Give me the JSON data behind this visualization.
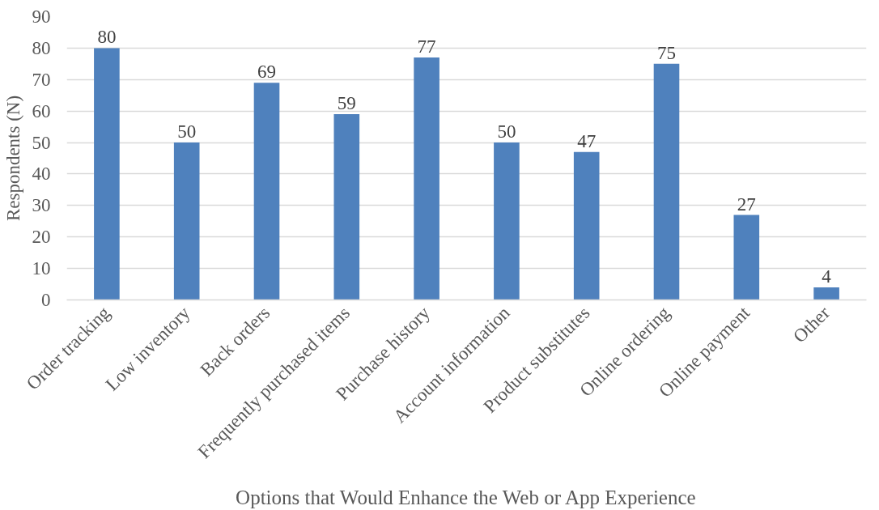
{
  "chart_data": {
    "type": "bar",
    "categories": [
      "Order tracking",
      "Low inventory",
      "Back orders",
      "Frequently purchased items",
      "Purchase history",
      "Account information",
      "Product substitutes",
      "Online ordering",
      "Online payment",
      "Other"
    ],
    "values": [
      80,
      50,
      69,
      59,
      77,
      50,
      47,
      75,
      27,
      4
    ],
    "color": "#4f81bd",
    "xlabel": "Options that Would Enhance the Web or App Experience",
    "ylabel": "Respondents (N)",
    "ylim": [
      0,
      90
    ],
    "yticks": [
      0,
      10,
      20,
      30,
      40,
      50,
      60,
      70,
      80,
      90
    ],
    "grid": "y",
    "data_labels": true
  }
}
